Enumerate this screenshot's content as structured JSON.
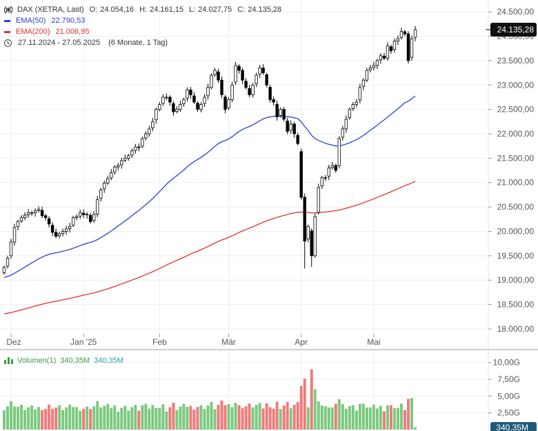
{
  "legend": {
    "instrument": "DAX (XETRA, Last)",
    "o_label": "O:",
    "o_value": "24.054,16",
    "h_label": "H:",
    "h_value": "24.161,15",
    "l_label": "L:",
    "l_value": "24.027,75",
    "c_label": "C:",
    "c_value": "24.135,28",
    "ema50_label": "EMA(50)",
    "ema50_value": "22.790,53",
    "ema200_label": "EMA(200)",
    "ema200_value": "21.006,95",
    "range": "27.11.2024 - 27.05.2025",
    "range_note": "(6 Monate, 1 Tag)",
    "volume_label": "Volumen(1)",
    "volume_value_a": "340,35M",
    "volume_value_b": "340,35M"
  },
  "colors": {
    "up_candle": "#ffffff",
    "down_candle": "#000000",
    "ema50": "#2a3fd6",
    "ema200": "#e0302f",
    "vol_up": "#7cc97f",
    "vol_down": "#ee7b7b",
    "price_tag": "#111111"
  },
  "chart_data": {
    "type": "candlestick",
    "y_ticks": [
      "24.500,00",
      "24.000,00",
      "23.500,00",
      "23.000,00",
      "22.500,00",
      "22.000,00",
      "21.500,00",
      "21.000,00",
      "20.500,00",
      "20.000,00",
      "19.500,00",
      "19.000,00",
      "18.500,00",
      "18.000,00"
    ],
    "y_tick_values": [
      24500,
      24000,
      23500,
      23000,
      22500,
      22000,
      21500,
      21000,
      20500,
      20000,
      19500,
      19000,
      18500,
      18000
    ],
    "ylim": [
      17900,
      24630
    ],
    "x_labels": [
      {
        "label": "Dez",
        "index": 2
      },
      {
        "label": "Jan '25",
        "index": 23
      },
      {
        "label": "Feb",
        "index": 45
      },
      {
        "label": "Mär",
        "index": 65
      },
      {
        "label": "Apr",
        "index": 86
      },
      {
        "label": "Mai",
        "index": 107
      }
    ],
    "last_price_tag": "24.135,28",
    "last_price": 24135.28,
    "close": [
      19260,
      19450,
      19780,
      20080,
      20200,
      20280,
      20330,
      20380,
      20380,
      20420,
      20450,
      20320,
      20280,
      20150,
      19980,
      19900,
      19950,
      20000,
      20050,
      20100,
      20280,
      20300,
      20380,
      20340,
      20350,
      20200,
      20350,
      20650,
      20850,
      20990,
      21080,
      21200,
      21320,
      21350,
      21450,
      21500,
      21550,
      21650,
      21730,
      21720,
      21900,
      22000,
      22100,
      22250,
      22500,
      22600,
      22750,
      22750,
      22650,
      22450,
      22500,
      22600,
      22700,
      22900,
      22800,
      22650,
      22500,
      22600,
      22750,
      22950,
      23200,
      23300,
      23100,
      22800,
      22500,
      22700,
      23000,
      23400,
      23300,
      23100,
      22950,
      22800,
      23000,
      23200,
      23350,
      23250,
      23000,
      22700,
      22650,
      22350,
      22500,
      22300,
      22050,
      22200,
      22000,
      21800,
      20700,
      19800,
      20100,
      19500,
      20300,
      20900,
      21100,
      21100,
      21300,
      21350,
      21250,
      21900,
      22100,
      22300,
      22500,
      22600,
      22650,
      22950,
      23100,
      23300,
      23350,
      23400,
      23500,
      23600,
      23550,
      23800,
      23700,
      23900,
      23950,
      24100,
      24050,
      23500,
      23950,
      24135
    ],
    "volume_ylim": [
      0,
      11
    ],
    "volume_ticks": [
      "10,00G",
      "7,50G",
      "5,00G",
      "2,50G"
    ],
    "volume_tick_values": [
      10,
      7.5,
      5,
      2.5
    ],
    "volume_last_tag": "340,35M"
  }
}
